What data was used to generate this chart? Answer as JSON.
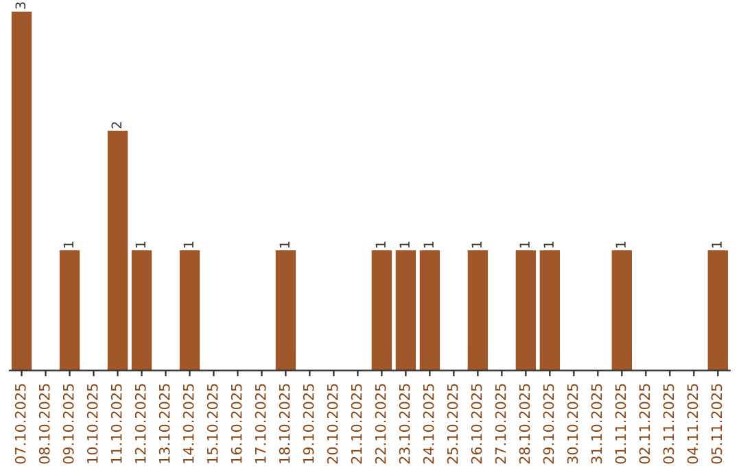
{
  "chart_data": {
    "type": "bar",
    "categories": [
      "07.10.2025",
      "08.10.2025",
      "09.10.2025",
      "10.10.2025",
      "11.10.2025",
      "12.10.2025",
      "13.10.2025",
      "14.10.2025",
      "15.10.2025",
      "16.10.2025",
      "17.10.2025",
      "18.10.2025",
      "19.10.2025",
      "20.10.2025",
      "21.10.2025",
      "22.10.2025",
      "23.10.2025",
      "24.10.2025",
      "25.10.2025",
      "26.10.2025",
      "27.10.2025",
      "28.10.2025",
      "29.10.2025",
      "30.10.2025",
      "31.10.2025",
      "01.11.2025",
      "02.11.2025",
      "03.11.2025",
      "04.11.2025",
      "05.11.2025"
    ],
    "values": [
      3,
      0,
      1,
      0,
      2,
      1,
      0,
      1,
      0,
      0,
      0,
      1,
      0,
      0,
      0,
      1,
      1,
      1,
      0,
      1,
      0,
      1,
      1,
      0,
      0,
      1,
      0,
      0,
      0,
      1
    ],
    "value_labels": [
      "3",
      null,
      "1",
      null,
      "2",
      "1",
      null,
      "1",
      null,
      null,
      null,
      "1",
      null,
      null,
      null,
      "1",
      "1",
      "1",
      null,
      "1",
      null,
      "1",
      "1",
      null,
      null,
      "1",
      null,
      null,
      null,
      "1"
    ],
    "color": "#a0572a",
    "ylim": [
      0,
      3
    ],
    "tick_labels": "x",
    "grid": false,
    "legend": false
  }
}
